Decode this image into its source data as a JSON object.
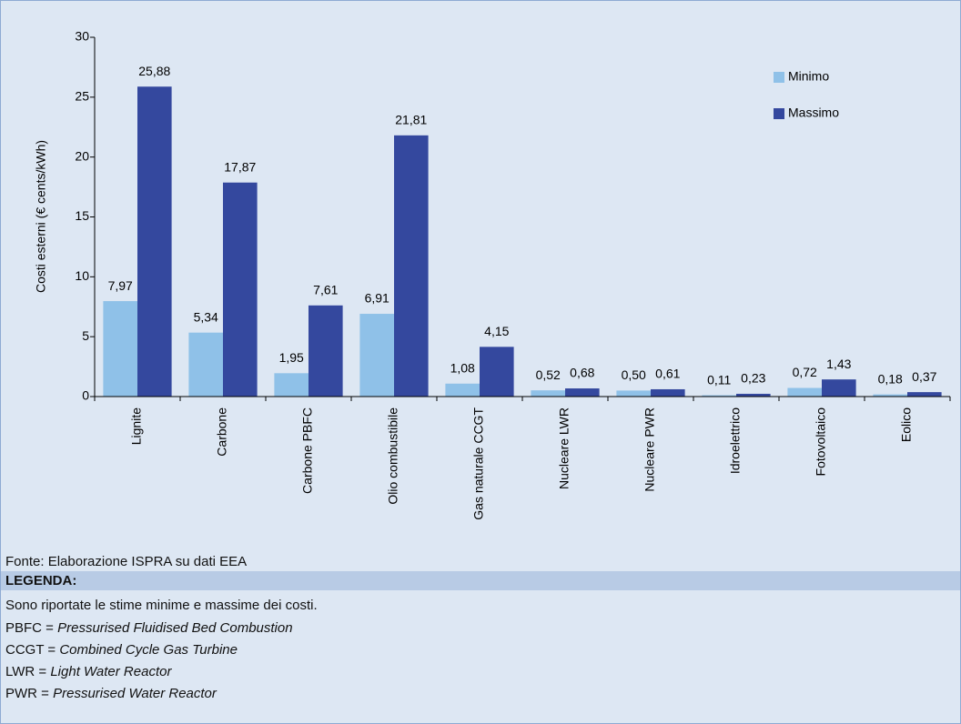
{
  "chart_data": {
    "type": "bar",
    "ylabel": "Costi esterni (€ cents/kWh)",
    "categories": [
      "Lignite",
      "Carbone",
      "Carbone PBFC",
      "Olio combustibile",
      "Gas naturale CCGT",
      "Nucleare LWR",
      "Nucleare PWR",
      "Idroelettrico",
      "Fotovoltaico",
      "Eolico"
    ],
    "series": [
      {
        "name": "Minimo",
        "color": "#8fc1e8",
        "values": [
          7.97,
          5.34,
          1.95,
          6.91,
          1.08,
          0.52,
          0.5,
          0.11,
          0.72,
          0.18
        ],
        "value_labels": [
          "7,97",
          "5,34",
          "1,95",
          "6,91",
          "1,08",
          "0,52",
          "0,50",
          "0,11",
          "0,72",
          "0,18"
        ]
      },
      {
        "name": "Massimo",
        "color": "#34489e",
        "values": [
          25.88,
          17.87,
          7.61,
          21.81,
          4.15,
          0.68,
          0.61,
          0.23,
          1.43,
          0.37
        ],
        "value_labels": [
          "25,88",
          "17,87",
          "7,61",
          "21,81",
          "4,15",
          "0,68",
          "0,61",
          "0,23",
          "1,43",
          "0,37"
        ]
      }
    ],
    "ylim": [
      0,
      30
    ],
    "yticks": [
      0,
      5,
      10,
      15,
      20,
      25,
      30
    ],
    "grid": false,
    "legend": "upper right"
  },
  "source": "Fonte: Elaborazione ISPRA su dati EEA",
  "legenda": {
    "title": "LEGENDA:",
    "intro": "Sono riportate le stime minime e massime dei costi.",
    "items": [
      {
        "term": "PBFC =",
        "definition": "Pressurised Fluidised Bed Combustion"
      },
      {
        "term": "CCGT =",
        "definition": "Combined Cycle Gas Turbine"
      },
      {
        "term": "LWR =",
        "definition": "Light Water Reactor"
      },
      {
        "term": "PWR =",
        "definition": "Pressurised Water Reactor"
      }
    ]
  }
}
